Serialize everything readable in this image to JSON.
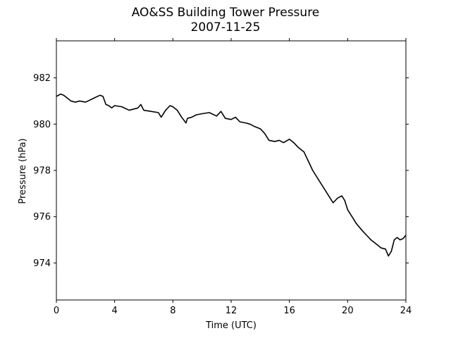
{
  "chart_data": {
    "type": "line",
    "title": "AO&SS Building Tower Pressure",
    "subtitle": "2007-11-25",
    "xlabel": "Time (UTC)",
    "ylabel": "Pressure (hPa)",
    "xlim": [
      0,
      24
    ],
    "ylim": [
      972.4,
      983.6
    ],
    "xticks": [
      0,
      4,
      8,
      12,
      16,
      20,
      24
    ],
    "yticks": [
      974,
      976,
      978,
      980,
      982
    ],
    "grid": false,
    "series": [
      {
        "color": "#000000",
        "x": [
          0,
          0.3,
          0.5,
          0.8,
          1.0,
          1.3,
          1.6,
          2.0,
          2.5,
          3.0,
          3.2,
          3.4,
          3.6,
          3.8,
          4.0,
          4.5,
          5.0,
          5.3,
          5.6,
          5.8,
          6.0,
          6.5,
          7.0,
          7.2,
          7.5,
          7.8,
          8.0,
          8.3,
          8.6,
          8.9,
          9.0,
          9.3,
          9.6,
          10.0,
          10.5,
          11.0,
          11.3,
          11.6,
          12.0,
          12.3,
          12.6,
          13.0,
          13.3,
          13.6,
          14.0,
          14.3,
          14.6,
          15.0,
          15.3,
          15.6,
          16.0,
          16.3,
          16.6,
          17.0,
          17.3,
          17.6,
          18.0,
          18.3,
          18.6,
          19.0,
          19.3,
          19.6,
          19.8,
          20.0,
          20.3,
          20.6,
          21.0,
          21.3,
          21.6,
          22.0,
          22.3,
          22.6,
          22.8,
          23.0,
          23.2,
          23.4,
          23.6,
          23.8,
          24.0
        ],
        "y": [
          981.2,
          981.3,
          981.25,
          981.1,
          981.0,
          980.95,
          981.0,
          980.95,
          981.1,
          981.25,
          981.2,
          980.85,
          980.8,
          980.7,
          980.8,
          980.75,
          980.6,
          980.65,
          980.7,
          980.85,
          980.6,
          980.55,
          980.5,
          980.3,
          980.6,
          980.8,
          980.75,
          980.6,
          980.3,
          980.05,
          980.25,
          980.3,
          980.4,
          980.45,
          980.5,
          980.35,
          980.55,
          980.25,
          980.2,
          980.3,
          980.1,
          980.05,
          980.0,
          979.9,
          979.8,
          979.6,
          979.3,
          979.25,
          979.3,
          979.2,
          979.35,
          979.2,
          979.0,
          978.8,
          978.4,
          978.0,
          977.6,
          977.3,
          977.0,
          976.6,
          976.8,
          976.9,
          976.7,
          976.3,
          976.0,
          975.7,
          975.4,
          975.2,
          975.0,
          974.8,
          974.65,
          974.6,
          974.3,
          974.5,
          975.0,
          975.1,
          975.0,
          975.05,
          975.2
        ]
      }
    ]
  }
}
